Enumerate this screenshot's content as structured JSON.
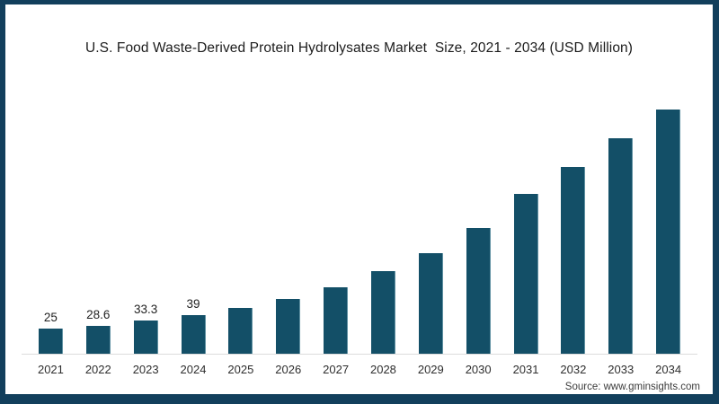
{
  "chart": {
    "title": "U.S. Food Waste-Derived Protein Hydrolysates Market  Size, 2021 - 2034 (USD Million)"
  },
  "source": {
    "text": "Source: www.gminsights.com"
  },
  "colors": {
    "bar": "#134f67",
    "frame": "#123f5c",
    "axis": "#dcdcdc"
  },
  "chart_data": {
    "type": "bar",
    "title": "U.S. Food Waste-Derived Protein Hydrolysates Market  Size, 2021 - 2034 (USD Million)",
    "categories": [
      "2021",
      "2022",
      "2023",
      "2024",
      "2025",
      "2026",
      "2027",
      "2028",
      "2029",
      "2030",
      "2031",
      "2032",
      "2033",
      "2034"
    ],
    "values": [
      25,
      28.6,
      33.3,
      39,
      46,
      55,
      67,
      84,
      102,
      127,
      162,
      189,
      218,
      247
    ],
    "value_labels": [
      "25",
      "28.6",
      "33.3",
      "39",
      "",
      "",
      "",
      "",
      "",
      "",
      "",
      "",
      "",
      ""
    ],
    "xlabel": "",
    "ylabel": "",
    "ylim": [
      0,
      254
    ],
    "grid": false,
    "legend": false
  }
}
